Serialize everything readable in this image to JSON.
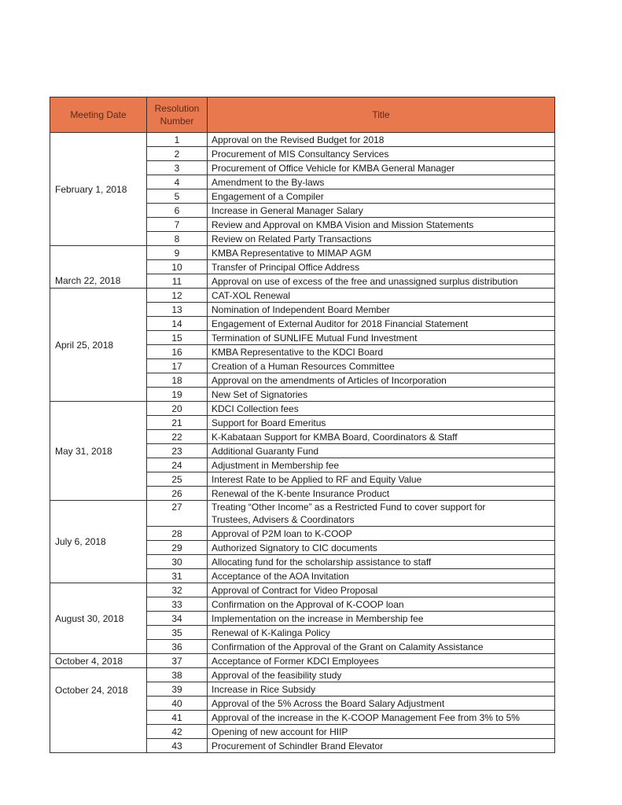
{
  "header": {
    "meeting_date": "Meeting Date",
    "resolution_number": "Resolution Number",
    "title": "Title"
  },
  "groups": [
    {
      "date": "February 1, 2018",
      "rows": [
        [
          "1",
          "Approval on the Revised Budget for 2018"
        ],
        [
          "2",
          "Procurement of MIS Consultancy Services"
        ],
        [
          "3",
          "Procurement of Office Vehicle for KMBA General Manager"
        ],
        [
          "4",
          "Amendment to the  By-laws"
        ],
        [
          "5",
          "Engagement of a Compiler"
        ],
        [
          "6",
          "Increase in General Manager Salary"
        ],
        [
          "7",
          "Review and Approval on KMBA Vision and Mission Statements"
        ],
        [
          "8",
          "Review on Related Party Transactions"
        ]
      ]
    },
    {
      "date": "March 22, 2018",
      "rows": [
        [
          "9",
          "KMBA Representative to MIMAP AGM"
        ],
        [
          "10",
          "Transfer of Principal Office Address"
        ],
        [
          "11",
          "Approval on use of excess of the free and unassigned surplus distribution"
        ]
      ]
    },
    {
      "date": "April 25, 2018",
      "rows": [
        [
          "12",
          "CAT-XOL Renewal"
        ],
        [
          "13",
          "Nomination of  Independent Board Member"
        ],
        [
          "14",
          "Engagement of External Auditor for 2018 Financial Statement"
        ],
        [
          "15",
          "Termination of SUNLIFE Mutual Fund Investment"
        ],
        [
          "16",
          "KMBA Representative to the KDCI Board"
        ],
        [
          "17",
          "Creation of a Human Resources Committee"
        ],
        [
          "18",
          "Approval on the amendments of Articles of Incorporation"
        ],
        [
          "19",
          "New Set of Signatories"
        ]
      ]
    },
    {
      "date": "May 31, 2018",
      "rows": [
        [
          "20",
          "KDCI Collection fees"
        ],
        [
          "21",
          "Support for Board Emeritus"
        ],
        [
          "22",
          "K-Kabataan Support for KMBA Board, Coordinators & Staff"
        ],
        [
          "23",
          "Additional Guaranty Fund"
        ],
        [
          "24",
          "Adjustment in Membership fee"
        ],
        [
          "25",
          "Interest Rate to be Applied to RF and Equity Value"
        ],
        [
          "26",
          "Renewal of the K-bente Insurance Product"
        ]
      ]
    },
    {
      "date": "July 6, 2018",
      "rows": [
        [
          "27",
          "Treating “Other Income” as a Restricted Fund to cover support for Trustees, Advisers & Coordinators"
        ],
        [
          "28",
          "Approval of P2M loan to K-COOP"
        ],
        [
          "29",
          "Authorized Signatory to CIC documents"
        ],
        [
          "30",
          "Allocating fund for the scholarship assistance to staff"
        ],
        [
          "31",
          "Acceptance of the AOA Invitation"
        ]
      ]
    },
    {
      "date": "August 30, 2018",
      "rows": [
        [
          "32",
          "Approval of Contract for Video Proposal"
        ],
        [
          "33",
          "Confirmation on the Approval of K-COOP loan"
        ],
        [
          "34",
          "Implementation on the increase in Membership fee"
        ],
        [
          "35",
          "Renewal of K-Kalinga Policy"
        ],
        [
          "36",
          "Confirmation of the Approval of the Grant on Calamity Assistance"
        ]
      ]
    },
    {
      "date": "October 4, 2018",
      "rows": [
        [
          "37",
          "Acceptance of Former KDCI Employees"
        ]
      ]
    },
    {
      "date": "October 24, 2018",
      "rows": [
        [
          "38",
          "Approval of the feasibility study"
        ],
        [
          "39",
          "Increase in Rice Subsidy"
        ],
        [
          "40",
          "Approval of the 5% Across the Board Salary Adjustment"
        ],
        [
          "41",
          "Approval of the increase in the K-COOP Management Fee from 3% to 5%"
        ],
        [
          "42",
          "Opening of new account for HIIP"
        ],
        [
          "43",
          "Procurement of Schindler Brand Elevator"
        ]
      ]
    }
  ]
}
